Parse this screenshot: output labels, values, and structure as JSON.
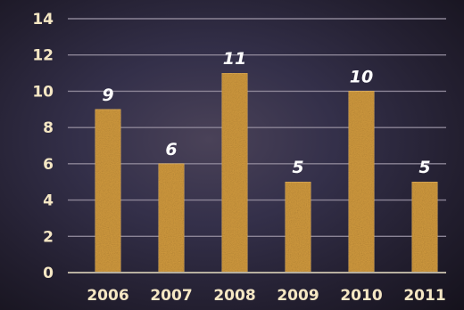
{
  "chart_data": {
    "type": "bar",
    "categories": [
      "2006",
      "2007",
      "2008",
      "2009",
      "2010",
      "2011"
    ],
    "values": [
      9,
      6,
      11,
      5,
      10,
      5
    ],
    "data_labels": [
      "9",
      "6",
      "11",
      "5",
      "10",
      "5"
    ],
    "y_ticks": [
      "0",
      "2",
      "4",
      "6",
      "8",
      "10",
      "12",
      "14"
    ],
    "ylim": [
      0,
      14
    ],
    "grid": true,
    "legend": "none",
    "title": "",
    "xlabel": "",
    "ylabel": ""
  },
  "colors": {
    "bar_fill": "#d19a3e",
    "bar_edge": "#e6b560",
    "grid": "#8b8496",
    "tick_text": "#f5e7c4",
    "data_label_text": "#ffffff"
  }
}
